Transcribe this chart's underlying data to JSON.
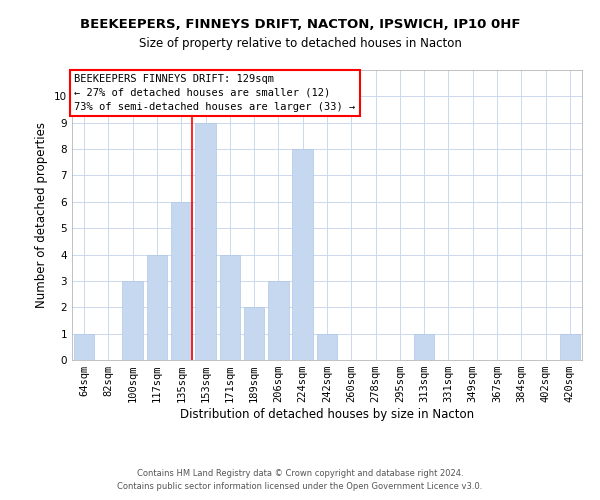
{
  "title": "BEEKEEPERS, FINNEYS DRIFT, NACTON, IPSWICH, IP10 0HF",
  "subtitle": "Size of property relative to detached houses in Nacton",
  "xlabel": "Distribution of detached houses by size in Nacton",
  "ylabel": "Number of detached properties",
  "categories": [
    "64sqm",
    "82sqm",
    "100sqm",
    "117sqm",
    "135sqm",
    "153sqm",
    "171sqm",
    "189sqm",
    "206sqm",
    "224sqm",
    "242sqm",
    "260sqm",
    "278sqm",
    "295sqm",
    "313sqm",
    "331sqm",
    "349sqm",
    "367sqm",
    "384sqm",
    "402sqm",
    "420sqm"
  ],
  "values": [
    1,
    0,
    3,
    4,
    6,
    9,
    4,
    2,
    3,
    8,
    1,
    0,
    0,
    0,
    1,
    0,
    0,
    0,
    0,
    0,
    1
  ],
  "bar_color": "#c5d8f0",
  "bar_edgecolor": "#b0c8e8",
  "redline_index": 4,
  "ylim": [
    0,
    11
  ],
  "yticks": [
    0,
    1,
    2,
    3,
    4,
    5,
    6,
    7,
    8,
    9,
    10,
    11
  ],
  "annotation_line1": "BEEKEEPERS FINNEYS DRIFT: 129sqm",
  "annotation_line2": "← 27% of detached houses are smaller (12)",
  "annotation_line3": "73% of semi-detached houses are larger (33) →",
  "footer_line1": "Contains HM Land Registry data © Crown copyright and database right 2024.",
  "footer_line2": "Contains public sector information licensed under the Open Government Licence v3.0.",
  "title_fontsize": 9.5,
  "subtitle_fontsize": 8.5,
  "axis_label_fontsize": 8.5,
  "tick_fontsize": 7.5,
  "annotation_fontsize": 7.5,
  "footer_fontsize": 6.0,
  "background_color": "#ffffff",
  "grid_color": "#ccd8ee"
}
